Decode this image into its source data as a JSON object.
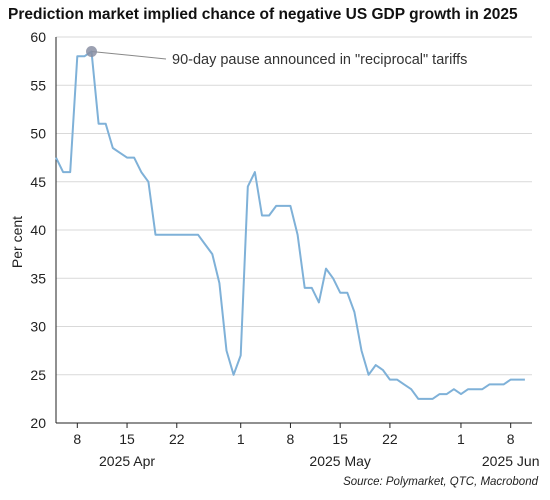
{
  "title": "Prediction market implied chance of negative US GDP growth in 2025",
  "source": "Source: Polymarket, QTC, Macrobond",
  "colors": {
    "line": "#7fb1d8",
    "grid": "#d9d9d9",
    "marker": "#8a8fa3",
    "axis": "#222222"
  },
  "chart_data": {
    "type": "line",
    "ylabel": "Per cent",
    "ylim": [
      20,
      60
    ],
    "yticks": [
      20,
      25,
      30,
      35,
      40,
      45,
      50,
      55,
      60
    ],
    "x_start": "2025-04-05",
    "x_end": "2025-06-11",
    "xticks": [
      {
        "date": "2025-04-08",
        "label": "8"
      },
      {
        "date": "2025-04-15",
        "label": "15"
      },
      {
        "date": "2025-04-22",
        "label": "22"
      },
      {
        "date": "2025-05-01",
        "label": "1"
      },
      {
        "date": "2025-05-08",
        "label": "8"
      },
      {
        "date": "2025-05-15",
        "label": "15"
      },
      {
        "date": "2025-05-22",
        "label": "22"
      },
      {
        "date": "2025-06-01",
        "label": "1"
      },
      {
        "date": "2025-06-08",
        "label": "8"
      }
    ],
    "month_labels": [
      {
        "date": "2025-04-15",
        "label": "2025 Apr"
      },
      {
        "date": "2025-05-15",
        "label": "2025 May"
      },
      {
        "date": "2025-06-08",
        "label": "2025 Jun"
      }
    ],
    "grid": true,
    "series": [
      {
        "points": [
          [
            "2025-04-05",
            47.5
          ],
          [
            "2025-04-06",
            46
          ],
          [
            "2025-04-07",
            46
          ],
          [
            "2025-04-08",
            58
          ],
          [
            "2025-04-09",
            58
          ],
          [
            "2025-04-10",
            58.5
          ],
          [
            "2025-04-11",
            51
          ],
          [
            "2025-04-12",
            51
          ],
          [
            "2025-04-13",
            48.5
          ],
          [
            "2025-04-14",
            48
          ],
          [
            "2025-04-15",
            47.5
          ],
          [
            "2025-04-16",
            47.5
          ],
          [
            "2025-04-17",
            46
          ],
          [
            "2025-04-18",
            45
          ],
          [
            "2025-04-19",
            39.5
          ],
          [
            "2025-04-20",
            39.5
          ],
          [
            "2025-04-21",
            39.5
          ],
          [
            "2025-04-22",
            39.5
          ],
          [
            "2025-04-23",
            39.5
          ],
          [
            "2025-04-24",
            39.5
          ],
          [
            "2025-04-25",
            39.5
          ],
          [
            "2025-04-26",
            38.5
          ],
          [
            "2025-04-27",
            37.5
          ],
          [
            "2025-04-28",
            34.5
          ],
          [
            "2025-04-29",
            27.5
          ],
          [
            "2025-04-30",
            25
          ],
          [
            "2025-05-01",
            27
          ],
          [
            "2025-05-02",
            44.5
          ],
          [
            "2025-05-03",
            46
          ],
          [
            "2025-05-04",
            41.5
          ],
          [
            "2025-05-05",
            41.5
          ],
          [
            "2025-05-06",
            42.5
          ],
          [
            "2025-05-07",
            42.5
          ],
          [
            "2025-05-08",
            42.5
          ],
          [
            "2025-05-09",
            39.5
          ],
          [
            "2025-05-10",
            34
          ],
          [
            "2025-05-11",
            34
          ],
          [
            "2025-05-12",
            32.5
          ],
          [
            "2025-05-13",
            36
          ],
          [
            "2025-05-14",
            35
          ],
          [
            "2025-05-15",
            33.5
          ],
          [
            "2025-05-16",
            33.5
          ],
          [
            "2025-05-17",
            31.5
          ],
          [
            "2025-05-18",
            27.5
          ],
          [
            "2025-05-19",
            25
          ],
          [
            "2025-05-20",
            26
          ],
          [
            "2025-05-21",
            25.5
          ],
          [
            "2025-05-22",
            24.5
          ],
          [
            "2025-05-23",
            24.5
          ],
          [
            "2025-05-24",
            24
          ],
          [
            "2025-05-25",
            23.5
          ],
          [
            "2025-05-26",
            22.5
          ],
          [
            "2025-05-27",
            22.5
          ],
          [
            "2025-05-28",
            22.5
          ],
          [
            "2025-05-29",
            23
          ],
          [
            "2025-05-30",
            23
          ],
          [
            "2025-05-31",
            23.5
          ],
          [
            "2025-06-01",
            23
          ],
          [
            "2025-06-02",
            23.5
          ],
          [
            "2025-06-03",
            23.5
          ],
          [
            "2025-06-04",
            23.5
          ],
          [
            "2025-06-05",
            24
          ],
          [
            "2025-06-06",
            24
          ],
          [
            "2025-06-07",
            24
          ],
          [
            "2025-06-08",
            24.5
          ],
          [
            "2025-06-09",
            24.5
          ],
          [
            "2025-06-10",
            24.5
          ]
        ]
      }
    ],
    "annotations": [
      {
        "date": "2025-04-10",
        "value": 58.5,
        "text": "90-day pause announced in \"reciprocal\" tariffs"
      }
    ]
  }
}
